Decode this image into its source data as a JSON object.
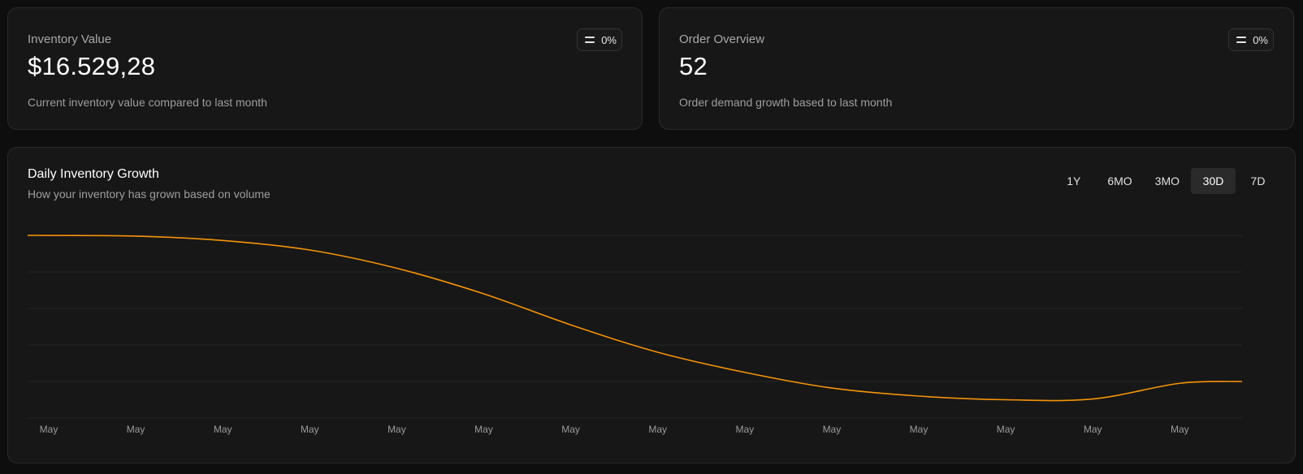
{
  "cards": [
    {
      "title": "Inventory Value",
      "value": "$16.529,28",
      "description": "Current inventory value compared to last month",
      "badge": {
        "icon": "equals-icon",
        "text": "0%"
      }
    },
    {
      "title": "Order Overview",
      "value": "52",
      "description": "Order demand growth based to last month",
      "badge": {
        "icon": "equals-icon",
        "text": "0%"
      }
    }
  ],
  "growth": {
    "title": "Daily Inventory Growth",
    "subtitle": "How your inventory has grown based on volume",
    "ranges": [
      "1Y",
      "6MO",
      "3MO",
      "30D",
      "7D"
    ],
    "selected_range": "30D"
  },
  "chart_data": {
    "type": "line",
    "title": "",
    "xlabel": "",
    "ylabel": "",
    "grid": true,
    "line_color": "#f5930b",
    "x_tick_labels": [
      "May",
      "May",
      "May",
      "May",
      "May",
      "May",
      "May",
      "May",
      "May",
      "May",
      "May",
      "May",
      "May",
      "May"
    ],
    "ylim": [
      0,
      5
    ],
    "x": [
      0,
      1,
      2,
      3,
      4,
      5,
      6,
      7,
      8,
      9,
      10,
      11,
      12,
      13,
      13.7
    ],
    "values": [
      5.0,
      4.98,
      4.86,
      4.6,
      4.1,
      3.4,
      2.55,
      1.8,
      1.25,
      0.82,
      0.6,
      0.5,
      0.52,
      0.95,
      1.0
    ]
  }
}
